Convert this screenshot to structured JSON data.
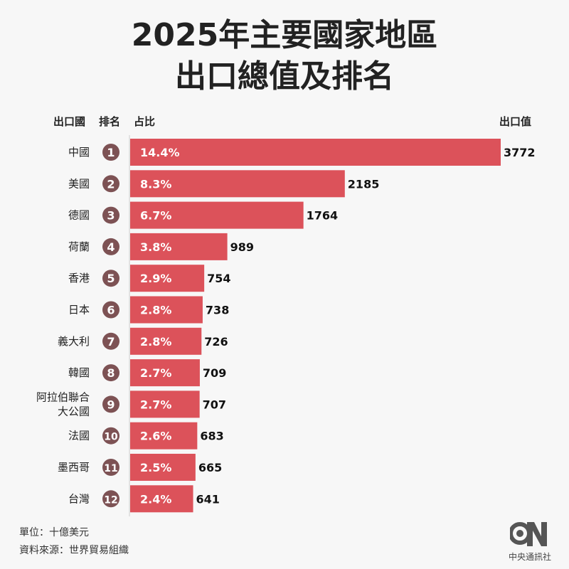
{
  "title_line1": "2025年主要國家地區",
  "title_line2": "出口總值及排名",
  "headers": {
    "country": "出口國",
    "rank": "排名",
    "share": "占比",
    "value": "出口值"
  },
  "footer": {
    "unit": "單位：十億美元",
    "source": "資料來源：世界貿易組織"
  },
  "logo": {
    "name": "CNA",
    "text": "中央通訊社"
  },
  "colors": {
    "bar": "#dc525a",
    "rank_circle": "#7d5254",
    "background": "#f7f7f7"
  },
  "chart_data": {
    "type": "bar",
    "orientation": "horizontal",
    "categories": [
      "中國",
      "美國",
      "德國",
      "荷蘭",
      "香港",
      "日本",
      "義大利",
      "韓國",
      "阿拉伯聯合\n大公國",
      "法國",
      "墨西哥",
      "台灣"
    ],
    "ranks": [
      "1",
      "2",
      "3",
      "4",
      "5",
      "6",
      "7",
      "8",
      "9",
      "10",
      "11",
      "12"
    ],
    "shares": [
      "14.4%",
      "8.3%",
      "6.7%",
      "3.8%",
      "2.9%",
      "2.8%",
      "2.8%",
      "2.7%",
      "2.7%",
      "2.6%",
      "2.5%",
      "2.4%"
    ],
    "values": [
      3772,
      2185,
      1764,
      989,
      754,
      738,
      726,
      709,
      707,
      683,
      665,
      641
    ],
    "xlim": [
      0,
      3772
    ]
  }
}
